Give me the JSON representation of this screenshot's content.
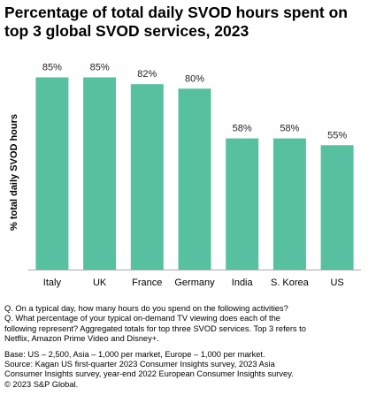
{
  "title_lines": [
    "Percentage of total daily SVOD hours spent on",
    "top 3 global SVOD services, 2023"
  ],
  "colors": {
    "bar": "#57c0a0",
    "axis": "#aaaaaa"
  },
  "chart_data": {
    "type": "bar",
    "title": "Percentage of total daily SVOD hours spent on top 3 global SVOD services, 2023",
    "categories": [
      "Italy",
      "UK",
      "France",
      "Germany",
      "India",
      "S. Korea",
      "US"
    ],
    "values": [
      85,
      85,
      82,
      80,
      58,
      58,
      55
    ],
    "data_labels": [
      "85%",
      "85%",
      "82%",
      "80%",
      "58%",
      "58%",
      "55%"
    ],
    "xlabel": "",
    "ylabel": "% total daily SVOD hours",
    "ylim": [
      0,
      100
    ],
    "grid": false,
    "legend": "none"
  },
  "notes": {
    "question_lines": [
      "Q. On a typical day, how many hours do you spend on the following activities?",
      "Q. What percentage of your typical on-demand TV viewing does each of the",
      "following represent? Aggregated totals for top three SVOD services. Top 3 refers to",
      "Netflix, Amazon Prime Video and Disney+."
    ],
    "source_lines": [
      "Base:  US – 2,500, Asia – 1,000 per market, Europe – 1,000 per market.",
      "Source: Kagan US first-quarter 2023 Consumer Insights survey, 2023 Asia",
      "Consumer Insights survey, year-end 2022 European Consumer Insights survey.",
      "© 2023 S&P Global."
    ]
  }
}
